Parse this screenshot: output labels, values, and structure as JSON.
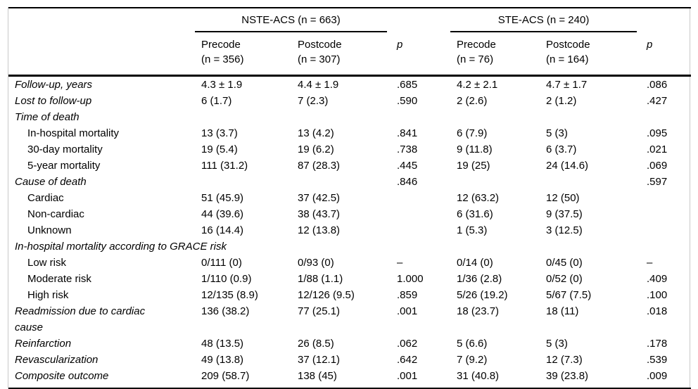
{
  "colors": {
    "rule": "#000000",
    "frame": "#c9c9c9",
    "background": "#ffffff",
    "text": "#000000"
  },
  "table": {
    "header": {
      "group_nste": "NSTE-ACS (n = 663)",
      "group_ste": "STE-ACS (n = 240)",
      "p_label": "p",
      "cols": [
        {
          "line1": "Precode",
          "line2": "(n = 356)"
        },
        {
          "line1": "Postcode",
          "line2": "(n = 307)"
        },
        {
          "line1": "Precode",
          "line2": "(n = 76)"
        },
        {
          "line1": "Postcode",
          "line2": "(n = 164)"
        }
      ]
    },
    "rows": [
      {
        "label": "Follow-up, years",
        "level": 0,
        "section": false,
        "cells": [
          "4.3 ± 1.9",
          "4.4 ± 1.9",
          ".685",
          "4.2 ± 2.1",
          "4.7 ± 1.7",
          ".086"
        ]
      },
      {
        "label": "Lost to follow-up",
        "level": 0,
        "section": false,
        "cells": [
          "6 (1.7)",
          "7 (2.3)",
          ".590",
          "2 (2.6)",
          "2 (1.2)",
          ".427"
        ]
      },
      {
        "label": "Time of death",
        "level": 0,
        "section": true,
        "cells": [
          "",
          "",
          "",
          "",
          "",
          ""
        ]
      },
      {
        "label": "In-hospital mortality",
        "level": 1,
        "section": false,
        "cells": [
          "13 (3.7)",
          "13 (4.2)",
          ".841",
          "6 (7.9)",
          "5 (3)",
          ".095"
        ]
      },
      {
        "label": "30-day mortality",
        "level": 1,
        "section": false,
        "cells": [
          "19 (5.4)",
          "19 (6.2)",
          ".738",
          "9 (11.8)",
          "6 (3.7)",
          ".021"
        ]
      },
      {
        "label": "5-year mortality",
        "level": 1,
        "section": false,
        "cells": [
          "111 (31.2)",
          "87 (28.3)",
          ".445",
          "19 (25)",
          "24 (14.6)",
          ".069"
        ]
      },
      {
        "label": "Cause of death",
        "level": 0,
        "section": false,
        "cells": [
          "",
          "",
          ".846",
          "",
          "",
          ".597"
        ]
      },
      {
        "label": "Cardiac",
        "level": 1,
        "section": false,
        "cells": [
          "51 (45.9)",
          "37 (42.5)",
          "",
          "12 (63.2)",
          "12 (50)",
          ""
        ]
      },
      {
        "label": "Non-cardiac",
        "level": 1,
        "section": false,
        "cells": [
          "44 (39.6)",
          "38 (43.7)",
          "",
          "6 (31.6)",
          "9 (37.5)",
          ""
        ]
      },
      {
        "label": "Unknown",
        "level": 1,
        "section": false,
        "cells": [
          "16 (14.4)",
          "12 (13.8)",
          "",
          "1 (5.3)",
          "3 (12.5)",
          ""
        ]
      },
      {
        "label": "In-hospital mortality according to GRACE risk",
        "level": 0,
        "section": true,
        "cells": [
          "",
          "",
          "",
          "",
          "",
          ""
        ]
      },
      {
        "label": "Low risk",
        "level": 1,
        "section": false,
        "cells": [
          "0/111 (0)",
          "0/93 (0)",
          "–",
          "0/14 (0)",
          "0/45 (0)",
          "–"
        ]
      },
      {
        "label": "Moderate risk",
        "level": 1,
        "section": false,
        "cells": [
          "1/110 (0.9)",
          "1/88 (1.1)",
          "1.000",
          "1/36 (2.8)",
          "0/52 (0)",
          ".409"
        ]
      },
      {
        "label": "High risk",
        "level": 1,
        "section": false,
        "cells": [
          "12/135 (8.9)",
          "12/126 (9.5)",
          ".859",
          "5/26 (19.2)",
          "5/67 (7.5)",
          ".100"
        ]
      },
      {
        "label": "Readmission due to cardiac cause",
        "level": 0,
        "section": false,
        "cells": [
          "136 (38.2)",
          "77 (25.1)",
          ".001",
          "18 (23.7)",
          "18 (11)",
          ".018"
        ]
      },
      {
        "label": "Reinfarction",
        "level": 0,
        "section": false,
        "cells": [
          "48 (13.5)",
          "26 (8.5)",
          ".062",
          "5 (6.6)",
          "5 (3)",
          ".178"
        ]
      },
      {
        "label": "Revascularization",
        "level": 0,
        "section": false,
        "cells": [
          "49 (13.8)",
          "37 (12.1)",
          ".642",
          "7 (9.2)",
          "12 (7.3)",
          ".539"
        ]
      },
      {
        "label": "Composite outcome",
        "level": 0,
        "section": false,
        "cells": [
          "209 (58.7)",
          "138 (45)",
          ".001",
          "31 (40.8)",
          "39 (23.8)",
          ".009"
        ]
      }
    ]
  }
}
